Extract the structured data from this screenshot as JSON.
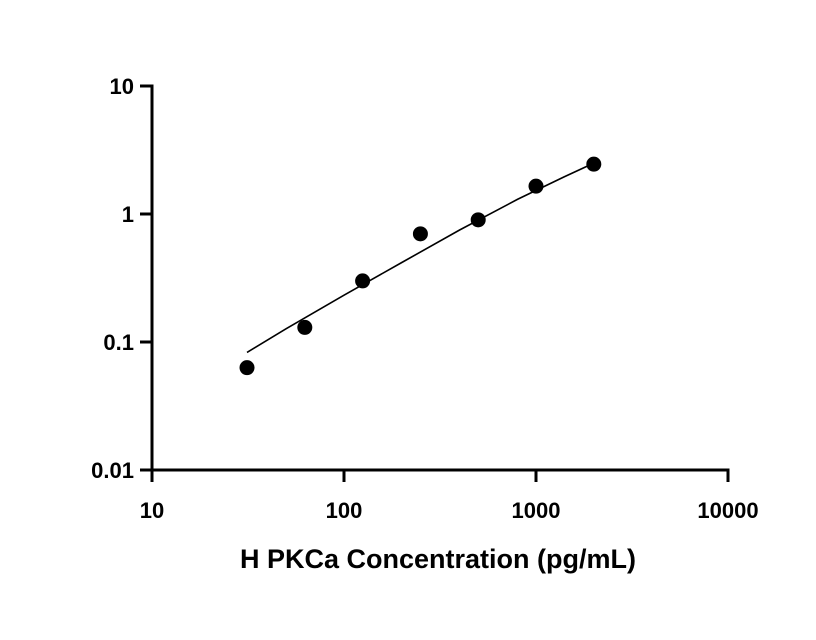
{
  "chart_data": {
    "type": "scatter",
    "title": "",
    "xlabel": "H PKCa Concentration (pg/mL)",
    "ylabel": "",
    "x_scale": "log",
    "y_scale": "log",
    "xlim": [
      10,
      10000
    ],
    "ylim": [
      0.01,
      10
    ],
    "x_ticks": [
      10,
      100,
      1000,
      10000
    ],
    "x_tick_labels": [
      "10",
      "100",
      "1000",
      "10000"
    ],
    "y_ticks": [
      0.01,
      0.1,
      1,
      10
    ],
    "y_tick_labels": [
      "0.01",
      "0.1",
      "1",
      "10"
    ],
    "grid": false,
    "legend": "none",
    "series": [
      {
        "marker": "filled-circle",
        "color": "#000000",
        "x": [
          31.25,
          62.5,
          125,
          250,
          500,
          1000,
          2000
        ],
        "y": [
          0.063,
          0.13,
          0.3,
          0.7,
          0.9,
          1.65,
          2.45
        ]
      }
    ],
    "fit_curve": {
      "color": "#000000",
      "x": [
        31.25,
        50,
        100,
        200,
        400,
        800,
        1400,
        2000
      ],
      "y": [
        0.083,
        0.127,
        0.232,
        0.418,
        0.75,
        1.3,
        1.95,
        2.5
      ]
    }
  }
}
